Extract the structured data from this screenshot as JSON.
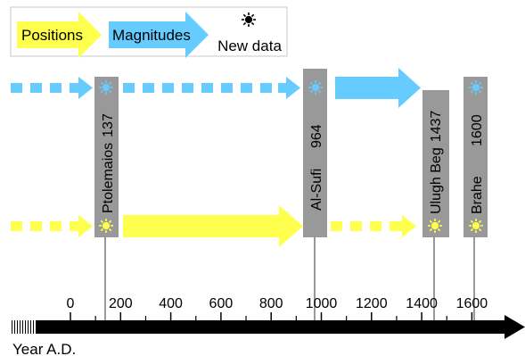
{
  "legend": {
    "positions_label": "Positions",
    "magnitudes_label": "Magnitudes",
    "new_data_label": "New data",
    "positions_color": "#ffff4d",
    "magnitudes_color": "#66ccff"
  },
  "astronomers": [
    {
      "name": "Ptolemaios",
      "year": "137",
      "year_value": 137,
      "label_layout": "joined"
    },
    {
      "name": "Al-Sufi",
      "year": "964",
      "year_value": 964,
      "label_layout": "split"
    },
    {
      "name": "Ulugh Beg",
      "year": "1437",
      "year_value": 1437,
      "label_layout": "joined"
    },
    {
      "name": "Brahe",
      "year": "1600",
      "year_value": 1600,
      "label_layout": "split"
    }
  ],
  "axis": {
    "title": "Year A.D.",
    "ticks": [
      "0",
      "200",
      "400",
      "600",
      "800",
      "1000",
      "1200",
      "1400",
      "1600"
    ]
  },
  "colors": {
    "bar_fill": "#999999",
    "axis_color": "#000000"
  }
}
